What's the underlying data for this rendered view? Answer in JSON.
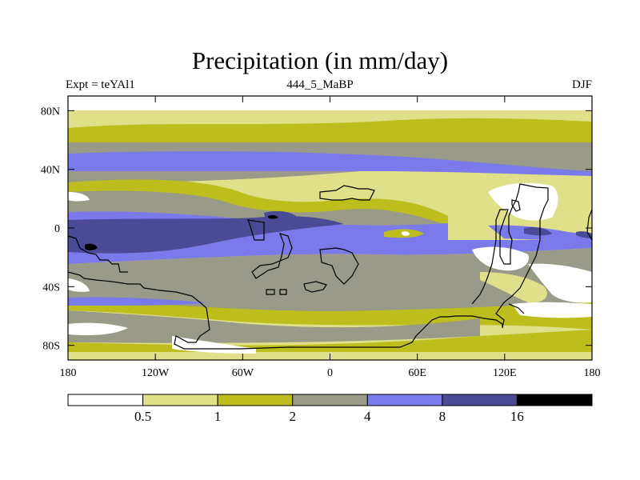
{
  "title": "Precipitation (in mm/day)",
  "subtitle_left": "Expt = teYAl1",
  "subtitle_center": "444_5_MaBP",
  "subtitle_right": "DJF",
  "x_ticks": [
    {
      "lon": -180,
      "label": "180"
    },
    {
      "lon": -120,
      "label": "120W"
    },
    {
      "lon": -60,
      "label": "60W"
    },
    {
      "lon": 0,
      "label": "0"
    },
    {
      "lon": 60,
      "label": "60E"
    },
    {
      "lon": 120,
      "label": "120E"
    },
    {
      "lon": 180,
      "label": "180"
    }
  ],
  "y_ticks": [
    {
      "lat": 80,
      "label": "80N"
    },
    {
      "lat": 40,
      "label": "40N"
    },
    {
      "lat": 0,
      "label": "0"
    },
    {
      "lat": -40,
      "label": "40S"
    },
    {
      "lat": -80,
      "label": "80S"
    }
  ],
  "colorbar": {
    "colors": [
      "#ffffff",
      "#e0e08a",
      "#bdbd1e",
      "#9a9a88",
      "#7a7aea",
      "#4a4a96",
      "#000000"
    ],
    "levels": [
      "0.5",
      "1",
      "2",
      "4",
      "8",
      "16"
    ]
  },
  "map_colors": {
    "c0": "#ffffff",
    "c1": "#e0e08a",
    "c2": "#bdbd1e",
    "c3": "#9a9a88",
    "c4": "#7a7aea",
    "c5": "#4a4a96",
    "c6": "#000000"
  }
}
